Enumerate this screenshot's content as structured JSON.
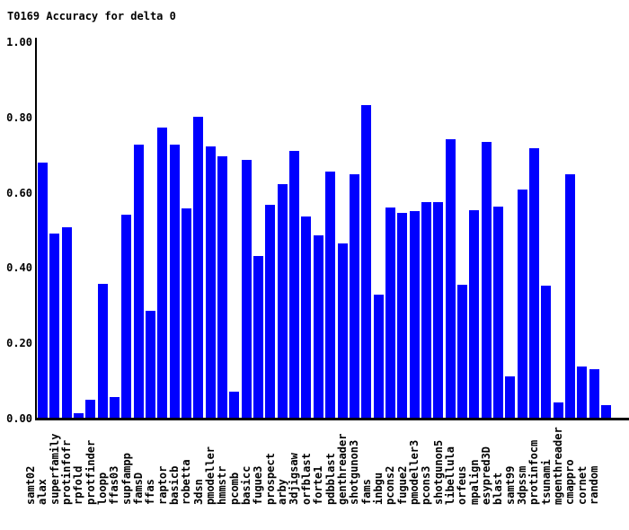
{
  "chart_data": {
    "type": "bar",
    "title": "T0169 Accuracy for delta 0",
    "xlabel": "",
    "ylabel": "",
    "ylim": [
      0.0,
      1.0
    ],
    "ytick_labels": [
      "0.00",
      "0.20",
      "0.40",
      "0.60",
      "0.80",
      "1.00"
    ],
    "ytick_values": [
      0.0,
      0.2,
      0.4,
      0.6,
      0.8,
      1.0
    ],
    "grid": false,
    "legend": false,
    "bar_color": "#0000ff",
    "axis_color": "#000000",
    "background_color": "#ffffff",
    "categories": [
      "samt02",
      "alax",
      "superfamily",
      "protinfofr",
      "rpfold",
      "protfinder",
      "loopp",
      "ffas03",
      "supfampp",
      "famsD",
      "ffas",
      "raptor",
      "basicb",
      "robetta",
      "3dsn",
      "pmodeller",
      "hmmstr",
      "pcomb",
      "basicc",
      "fugue3",
      "prospect",
      "arby",
      "3djigsaw",
      "orfblast",
      "forte1",
      "pdbblast",
      "genthreader",
      "shotgunon3",
      "fams",
      "inbgu",
      "pcons2",
      "fugue2",
      "pmodeller3",
      "pcons3",
      "shotgunon5",
      "libellula",
      "orfeus",
      "mpalign",
      "esypred3D",
      "blast",
      "samt99",
      "3dpssm",
      "protinfocm",
      "tsunami",
      "mgenthreader",
      "cmappro",
      "cornet",
      "random"
    ],
    "values": [
      0.678,
      0.49,
      0.505,
      0.012,
      0.048,
      0.355,
      0.054,
      0.54,
      0.725,
      0.285,
      0.77,
      0.725,
      0.555,
      0.8,
      0.72,
      0.695,
      0.07,
      0.685,
      0.43,
      0.565,
      0.62,
      0.71,
      0.535,
      0.485,
      0.655,
      0.462,
      0.647,
      0.83,
      0.327,
      0.558,
      0.545,
      0.55,
      0.572,
      0.572,
      0.74,
      0.353,
      0.552,
      0.732,
      0.56,
      0.11,
      0.607,
      0.716,
      0.35,
      0.041,
      0.647,
      0.137,
      0.129,
      0.034
    ]
  }
}
